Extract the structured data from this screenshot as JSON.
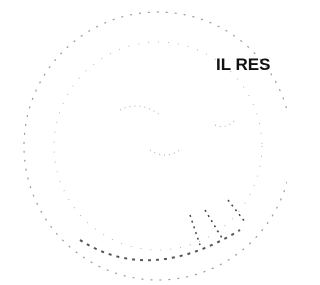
{
  "stamp": {
    "text": "IL RES"
  }
}
